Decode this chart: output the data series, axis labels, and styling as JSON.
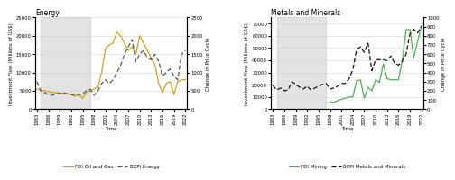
{
  "energy": {
    "title": "Energy",
    "years": [
      1983,
      1984,
      1985,
      1986,
      1987,
      1988,
      1989,
      1990,
      1991,
      1992,
      1993,
      1994,
      1995,
      1996,
      1997,
      1998,
      1999,
      2000,
      2001,
      2002,
      2003,
      2004,
      2005,
      2006,
      2007,
      2008,
      2009,
      2010,
      2011,
      2012,
      2013,
      2014,
      2015,
      2016,
      2017,
      2018,
      2019,
      2020,
      2021,
      2022
    ],
    "fdi": [
      5500,
      5200,
      5000,
      4800,
      4600,
      4500,
      4400,
      4300,
      4200,
      4000,
      3500,
      4000,
      3000,
      4500,
      5000,
      5500,
      6000,
      10000,
      16500,
      17500,
      18000,
      21000,
      20000,
      18000,
      16000,
      17000,
      15000,
      20000,
      18000,
      16000,
      14000,
      12000,
      7000,
      4500,
      7000,
      7500,
      4000,
      7500,
      8000,
      8000
    ],
    "bcpi": [
      750,
      500,
      450,
      400,
      380,
      420,
      430,
      440,
      420,
      400,
      380,
      400,
      420,
      500,
      540,
      380,
      500,
      700,
      800,
      700,
      800,
      1000,
      1200,
      1500,
      1700,
      1900,
      1300,
      1500,
      1600,
      1400,
      1350,
      1500,
      1300,
      900,
      1000,
      1100,
      900,
      800,
      1500,
      1600
    ],
    "ylabel_left": "Investment Flow (Millions of US$)",
    "ylabel_right": "Change in Price Cycle",
    "ylim_left": [
      0,
      25000
    ],
    "ylim_right": [
      0,
      2500
    ],
    "yticks_left": [
      0,
      5000,
      10000,
      15000,
      20000,
      25000
    ],
    "yticks_right": [
      0,
      500,
      1000,
      1500,
      2000,
      2500
    ],
    "fdi_color": "#D4A017",
    "bcpi_color": "#555555",
    "shade_start": 1984,
    "shade_end": 1997,
    "legend_fdi": "FDI Oil and Gas",
    "legend_bcpi": "BCPI Energy"
  },
  "minerals": {
    "title": "Metals and Minerals",
    "years": [
      1983,
      1984,
      1985,
      1986,
      1987,
      1988,
      1989,
      1990,
      1991,
      1992,
      1993,
      1994,
      1995,
      1996,
      1997,
      1998,
      1999,
      2000,
      2001,
      2002,
      2003,
      2004,
      2005,
      2006,
      2007,
      2008,
      2009,
      2010,
      2011,
      2012,
      2013,
      2014,
      2015,
      2016,
      2017,
      2018,
      2019,
      2020,
      2021,
      2022
    ],
    "fdi": [
      null,
      null,
      null,
      null,
      null,
      null,
      null,
      null,
      null,
      null,
      null,
      null,
      null,
      null,
      null,
      6000,
      5500,
      7000,
      8000,
      9000,
      10000,
      10000,
      23000,
      24000,
      9000,
      18000,
      15000,
      24000,
      22000,
      37000,
      25000,
      24000,
      24000,
      24000,
      40000,
      65000,
      65000,
      42000,
      55000,
      68000
    ],
    "bcpi": [
      260,
      210,
      230,
      200,
      210,
      300,
      270,
      240,
      220,
      250,
      210,
      230,
      250,
      270,
      280,
      220,
      230,
      250,
      280,
      280,
      330,
      430,
      650,
      680,
      620,
      720,
      420,
      540,
      540,
      540,
      530,
      580,
      500,
      480,
      520,
      600,
      820,
      870,
      830,
      900
    ],
    "ylabel_left": "Investment Flow (Millions of CA$)",
    "ylabel_right": "Change in Price Cycle",
    "ylim_left": [
      0,
      75000
    ],
    "ylim_right": [
      0,
      1000
    ],
    "yticks_left": [
      0,
      10000,
      20000,
      30000,
      40000,
      50000,
      60000,
      70000
    ],
    "yticks_right": [
      0,
      100,
      200,
      300,
      400,
      500,
      600,
      700,
      800,
      900,
      1000
    ],
    "fdi_color": "#4CAF50",
    "bcpi_color": "#111111",
    "shade_start": 1984,
    "shade_end": 1997,
    "legend_fdi": "FDI Mining",
    "legend_bcpi": "BCPI Metals and Minerals"
  },
  "xlabel": "Time",
  "xticks": [
    1983,
    1986,
    1989,
    1992,
    1995,
    1998,
    2001,
    2004,
    2007,
    2010,
    2013,
    2016,
    2019,
    2022
  ],
  "background_color": "#ffffff",
  "figsize": [
    5.0,
    2.0
  ],
  "dpi": 100,
  "title_fontsize": 5.5,
  "label_fontsize": 4.0,
  "tick_fontsize": 3.8,
  "legend_fontsize": 4.0,
  "linewidth": 0.9
}
